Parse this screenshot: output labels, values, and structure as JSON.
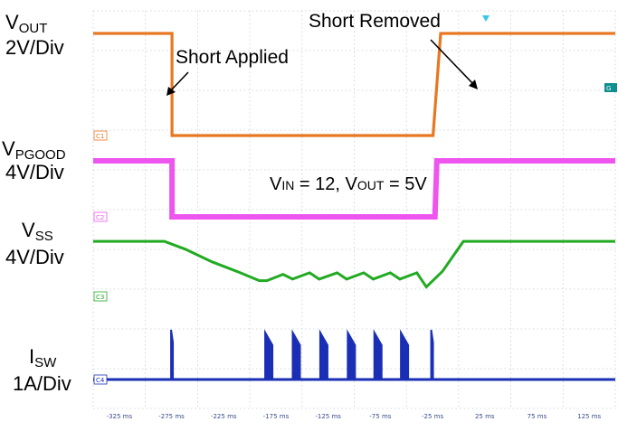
{
  "chart_data": {
    "type": "line",
    "title": "",
    "condition": {
      "v_in_label": "V",
      "v_in_sub": "IN",
      "v_in_value": " = 12, V",
      "v_out_sub": "OUT",
      "v_out_value": " = 5V"
    },
    "xlabel": "",
    "x_tick_labels": [
      "-325 ms",
      "-275 ms",
      "-225 ms",
      "-175 ms",
      "-125 ms",
      "-75 ms",
      "-25 ms",
      "25 ms",
      "75 ms",
      "125 ms"
    ],
    "channels": [
      {
        "name": "VOUT",
        "label_main": "V",
        "label_sub": "OUT",
        "scale": "2V/Div",
        "color": "#e87722",
        "ground_marker": "C1",
        "points": [
          [
            0,
            5
          ],
          [
            83,
            5
          ],
          [
            83,
            0
          ],
          [
            358,
            0
          ],
          [
            366,
            5
          ],
          [
            550,
            5
          ]
        ]
      },
      {
        "name": "VPGOOD",
        "label_main": "V",
        "label_sub": "PGOOD",
        "scale": "4V/Div",
        "color": "#ee55ee",
        "ground_marker": "C2",
        "points": [
          [
            0,
            5
          ],
          [
            83,
            5
          ],
          [
            83,
            0
          ],
          [
            360,
            0
          ],
          [
            362,
            5
          ],
          [
            550,
            5
          ]
        ]
      },
      {
        "name": "VSS",
        "label_main": "V",
        "label_sub": "SS",
        "scale": "4V/Div",
        "color": "#22aa22",
        "ground_marker": "C3",
        "points": [
          [
            0,
            3.5
          ],
          [
            75,
            3.5
          ],
          [
            97,
            3.0
          ],
          [
            125,
            2.2
          ],
          [
            155,
            1.5
          ],
          [
            175,
            1.0
          ],
          [
            183,
            1.0
          ],
          [
            200,
            1.4
          ],
          [
            210,
            1.1
          ],
          [
            228,
            1.5
          ],
          [
            238,
            1.1
          ],
          [
            257,
            1.5
          ],
          [
            267,
            1.1
          ],
          [
            285,
            1.5
          ],
          [
            295,
            1.1
          ],
          [
            313,
            1.5
          ],
          [
            323,
            1.1
          ],
          [
            341,
            1.5
          ],
          [
            351,
            0.6
          ],
          [
            368,
            1.6
          ],
          [
            390,
            3.5
          ],
          [
            550,
            3.5
          ]
        ]
      },
      {
        "name": "ISW",
        "label_main": "I",
        "label_sub": "SW",
        "scale": "1A/Div",
        "color": "#1a2fb5",
        "ground_marker": "C4",
        "points": [
          [
            0,
            0
          ],
          [
            550,
            0
          ]
        ],
        "spikes_x": [
          83,
          185,
          214,
          243,
          272,
          300,
          328,
          357
        ]
      }
    ],
    "annotations": {
      "applied": "Short Applied",
      "removed": "Short Removed"
    },
    "gnd_label": "G"
  }
}
